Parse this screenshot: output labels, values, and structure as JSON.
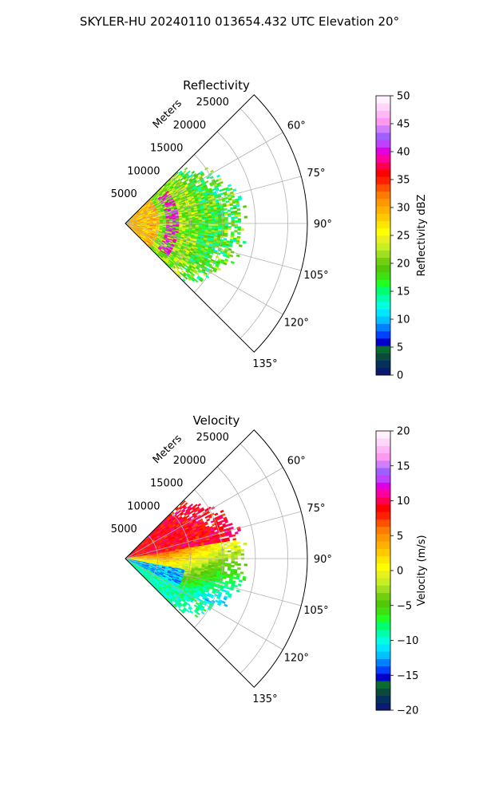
{
  "figure": {
    "suptitle": "SKYLER-HU  20240110  013654.432 UTC Elevation 20°"
  },
  "chart_data": [
    {
      "type": "heatmap",
      "subtype": "polar-ppi-sector",
      "title": "Reflectivity",
      "radial_label": "Meters",
      "r_ticks": [
        5000,
        10000,
        15000,
        20000,
        25000
      ],
      "r_max": 28000,
      "theta_range_deg": [
        45,
        135
      ],
      "theta_ticks_deg": [
        60,
        75,
        90,
        105,
        120,
        135
      ],
      "theta_tick_labels": [
        "60°",
        "75°",
        "90°",
        "105°",
        "120°",
        "135°"
      ],
      "r_tick_labels": [
        "5000",
        "10000",
        "15000",
        "20000",
        "25000"
      ],
      "grid": true,
      "data_extent_m": {
        "min": 0,
        "max": 17500
      },
      "field_description": "reflectivity mostly 15-30 dBZ with 35-42 dBZ band near 6000-8000 m",
      "colorbar": {
        "label": "Reflectivity dBZ",
        "range": [
          0,
          50
        ],
        "ticks": [
          0,
          5,
          10,
          15,
          20,
          25,
          30,
          35,
          40,
          45,
          50
        ],
        "tick_labels": [
          "0",
          "5",
          "10",
          "15",
          "20",
          "25",
          "30",
          "35",
          "40",
          "45",
          "50"
        ],
        "colors": [
          "#0b1a6e",
          "#04305c",
          "#0b4a3a",
          "#0a6b32",
          "#0000c8",
          "#0040ff",
          "#0080ff",
          "#00c0ff",
          "#00e6ff",
          "#00ffe0",
          "#00ffa8",
          "#00ff70",
          "#20ff20",
          "#40e010",
          "#50c808",
          "#70d010",
          "#a0e020",
          "#c8f020",
          "#e8f020",
          "#ffff00",
          "#ffe600",
          "#ffc800",
          "#ffb000",
          "#ff9800",
          "#ff7a00",
          "#ff5000",
          "#ff2000",
          "#ff0000",
          "#ff0050",
          "#ff00a0",
          "#e000e0",
          "#c040ff",
          "#a060ff",
          "#d080ff",
          "#ff99f0",
          "#ffb8f5",
          "#ffd6fa",
          "#fff0fc"
        ]
      }
    },
    {
      "type": "heatmap",
      "subtype": "polar-ppi-sector",
      "title": "Velocity",
      "radial_label": "Meters",
      "r_ticks": [
        5000,
        10000,
        15000,
        20000,
        25000
      ],
      "r_max": 28000,
      "theta_range_deg": [
        45,
        135
      ],
      "theta_ticks_deg": [
        60,
        75,
        90,
        105,
        120,
        135
      ],
      "theta_tick_labels": [
        "60°",
        "75°",
        "90°",
        "105°",
        "120°",
        "135°"
      ],
      "r_tick_labels": [
        "5000",
        "10000",
        "15000",
        "20000",
        "25000"
      ],
      "grid": true,
      "data_extent_m": {
        "min": 0,
        "max": 17500
      },
      "field_description": "outbound +8 to +12 m/s north of 90°, inbound -10 to -15 m/s south of 95°",
      "colorbar": {
        "label": "Velocity (m/s)",
        "range": [
          -20,
          20
        ],
        "ticks": [
          -20,
          -15,
          -10,
          -5,
          0,
          5,
          10,
          15,
          20
        ],
        "tick_labels": [
          "−20",
          "−15",
          "−10",
          "−5",
          "0",
          "5",
          "10",
          "15",
          "20"
        ],
        "colors": [
          "#0b1a6e",
          "#04305c",
          "#0b4a3a",
          "#0a6b32",
          "#0000c8",
          "#0040ff",
          "#0080ff",
          "#00c0ff",
          "#00e6ff",
          "#00ffe0",
          "#00ffa8",
          "#00ff70",
          "#20ff20",
          "#40e010",
          "#50c808",
          "#70d010",
          "#a0e020",
          "#c8f020",
          "#e8f020",
          "#ffff00",
          "#ffe600",
          "#ffc800",
          "#ffb000",
          "#ff9800",
          "#ff7a00",
          "#ff5000",
          "#ff2000",
          "#ff0000",
          "#ff0050",
          "#ff00a0",
          "#e000e0",
          "#c040ff",
          "#a060ff",
          "#d080ff",
          "#ff99f0",
          "#ffb8f5",
          "#ffd6fa",
          "#fff0fc"
        ]
      }
    }
  ]
}
